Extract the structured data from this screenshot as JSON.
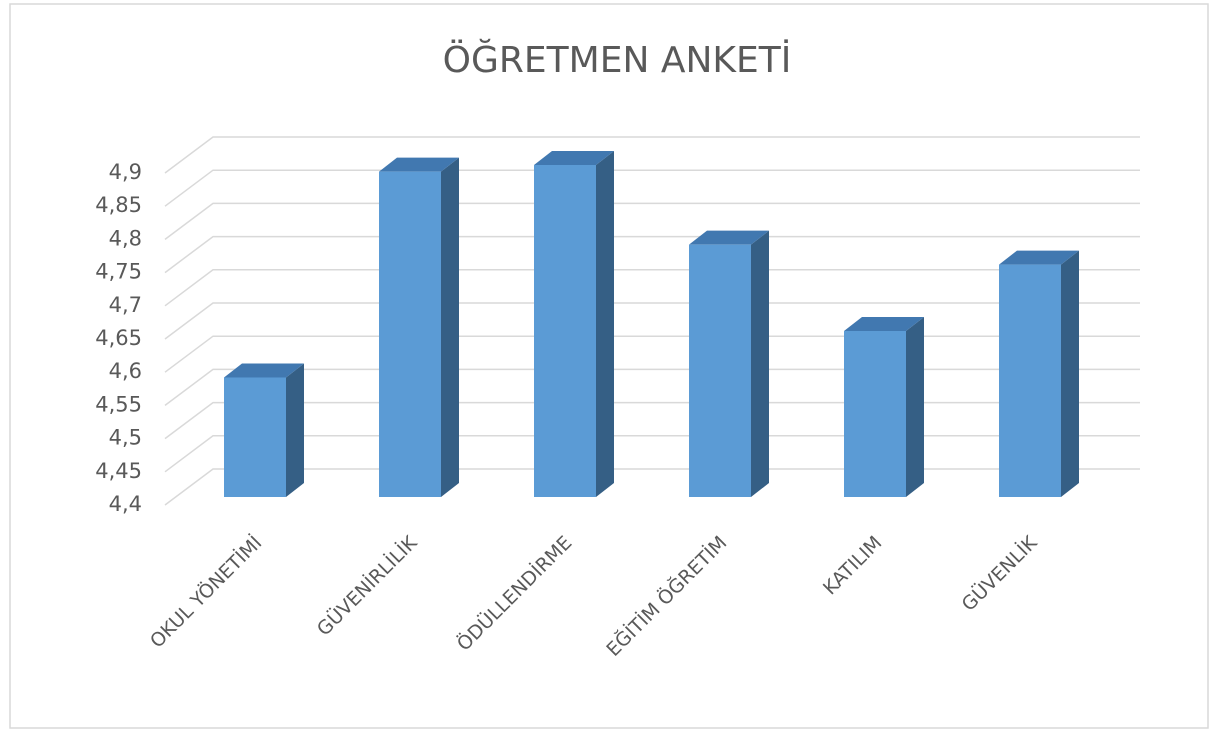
{
  "chart_data": {
    "type": "bar3d",
    "title": "ÖĞRETMEN ANKETİ",
    "categories": [
      "OKUL YÖNETİMİ",
      "GÜVENİRLİLİK",
      "ÖDÜLLENDİRME",
      "EĞİTİM ÖĞRETİM",
      "KATILIM",
      "GÜVENLİK"
    ],
    "values": [
      4.58,
      4.89,
      4.9,
      4.78,
      4.65,
      4.75
    ],
    "color": "#5b9bd5",
    "ylim": [
      4.4,
      4.9
    ],
    "yticks": [
      {
        "value": 4.4,
        "label": "4,4"
      },
      {
        "value": 4.45,
        "label": "4,45"
      },
      {
        "value": 4.5,
        "label": "4,5"
      },
      {
        "value": 4.55,
        "label": "4,55"
      },
      {
        "value": 4.6,
        "label": "4,6"
      },
      {
        "value": 4.65,
        "label": "4,65"
      },
      {
        "value": 4.7,
        "label": "4,7"
      },
      {
        "value": 4.75,
        "label": "4,75"
      },
      {
        "value": 4.8,
        "label": "4,8"
      },
      {
        "value": 4.85,
        "label": "4,85"
      },
      {
        "value": 4.9,
        "label": "4,9"
      }
    ],
    "grid": true
  }
}
